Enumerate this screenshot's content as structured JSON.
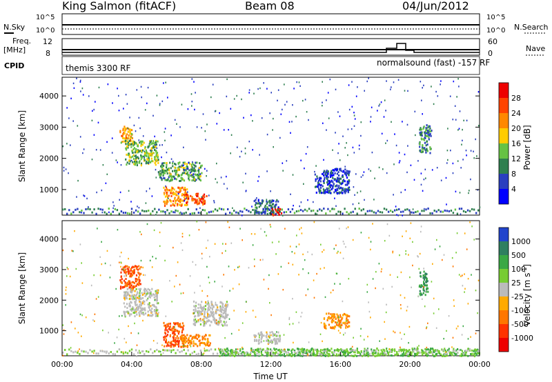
{
  "header": {
    "title": "King Salmon (fitACF)",
    "beam": "Beam 08",
    "date": "04/Jun/2012"
  },
  "summary_panels": {
    "nsky_label": "N.Sky",
    "nsearch_label": "N.Search",
    "freq_label_1": "Freq.",
    "freq_label_2": "[MHz]",
    "nave_label": "Nave",
    "cpid_label": "CPID",
    "noise_ticks": {
      "top": "10^5",
      "bottom": "10^0"
    },
    "freq_ticks": [
      "12",
      "8"
    ],
    "nave_ticks": [
      "60",
      "0"
    ],
    "cpid_segments": [
      {
        "text": "themis 3300 RF",
        "start_hour": 0.0
      },
      {
        "text": "normalsound (fast) -157 RF",
        "start_hour": 18.0
      }
    ]
  },
  "colorbars": {
    "power": {
      "label": "Power [dB]",
      "ticks": [
        "28",
        "24",
        "20",
        "16",
        "12",
        "8",
        "4"
      ],
      "colors": [
        "#0000ff",
        "#2a3fbf",
        "#2f7f4f",
        "#66c244",
        "#ffcc00",
        "#ff8800",
        "#ff4400",
        "#ee0000"
      ]
    },
    "velocity": {
      "label": "Velocity [m s",
      "label_sup": "-1",
      "label_end": "]",
      "ticks": [
        "1000",
        "500",
        "100",
        "25",
        "-25",
        "-100",
        "-500",
        "-1000"
      ],
      "colors": [
        "#2244cc",
        "#2f7f60",
        "#3aa844",
        "#77cc33",
        "#bbbbbb",
        "#ffaa00",
        "#ff7700",
        "#ff3300",
        "#ee0000"
      ]
    }
  },
  "chart_data": [
    {
      "type": "heatmap",
      "name": "power",
      "ylabel": "Slant Range [km]",
      "xlabel": "",
      "yticks": [
        "1000",
        "2000",
        "3000",
        "4000"
      ],
      "ylim": [
        180,
        4600
      ],
      "xlim": [
        0,
        24
      ],
      "regions": [
        {
          "t0": 3.3,
          "t1": 4.0,
          "r0": 2500,
          "r1": 3050,
          "power": 20
        },
        {
          "t0": 3.6,
          "t1": 5.5,
          "r0": 1800,
          "r1": 2600,
          "power": 14
        },
        {
          "t0": 5.5,
          "t1": 8.0,
          "r0": 1300,
          "r1": 1900,
          "power": 12
        },
        {
          "t0": 5.8,
          "t1": 7.2,
          "r0": 500,
          "r1": 1100,
          "power": 22
        },
        {
          "t0": 7.0,
          "t1": 8.3,
          "r0": 550,
          "r1": 900,
          "power": 26
        },
        {
          "t0": 11.0,
          "t1": 12.4,
          "r0": 250,
          "r1": 700,
          "power": 8
        },
        {
          "t0": 12.0,
          "t1": 12.6,
          "r0": 200,
          "r1": 420,
          "power": 28
        },
        {
          "t0": 14.5,
          "t1": 16.5,
          "r0": 900,
          "r1": 1700,
          "power": 6
        },
        {
          "t0": 20.5,
          "t1": 21.2,
          "r0": 2200,
          "r1": 3100,
          "power": 10
        }
      ]
    },
    {
      "type": "heatmap",
      "name": "velocity",
      "ylabel": "Slant Range [km]",
      "xlabel": "Time UT",
      "xticks": [
        "00:00",
        "04:00",
        "08:00",
        "12:00",
        "16:00",
        "20:00",
        "00:00"
      ],
      "yticks": [
        "1000",
        "2000",
        "3000",
        "4000"
      ],
      "ylim": [
        180,
        4600
      ],
      "xlim": [
        0,
        24
      ],
      "regions": [
        {
          "t0": 3.3,
          "t1": 4.5,
          "r0": 2400,
          "r1": 3150,
          "velocity": -500
        },
        {
          "t0": 3.5,
          "t1": 5.5,
          "r0": 1500,
          "r1": 2400,
          "velocity": 0
        },
        {
          "t0": 5.8,
          "t1": 7.0,
          "r0": 500,
          "r1": 1300,
          "velocity": -500
        },
        {
          "t0": 6.8,
          "t1": 8.5,
          "r0": 500,
          "r1": 900,
          "velocity": -100
        },
        {
          "t0": 7.5,
          "t1": 9.5,
          "r0": 1200,
          "r1": 2000,
          "velocity": 0
        },
        {
          "t0": 11.0,
          "t1": 12.5,
          "r0": 600,
          "r1": 1000,
          "velocity": 0
        },
        {
          "t0": 9.0,
          "t1": 24.0,
          "r0": 200,
          "r1": 450,
          "velocity": 100
        },
        {
          "t0": 15.0,
          "t1": 16.5,
          "r0": 1100,
          "r1": 1600,
          "velocity": -100
        },
        {
          "t0": 20.5,
          "t1": 21.0,
          "r0": 2200,
          "r1": 3000,
          "velocity": 500
        }
      ]
    }
  ]
}
